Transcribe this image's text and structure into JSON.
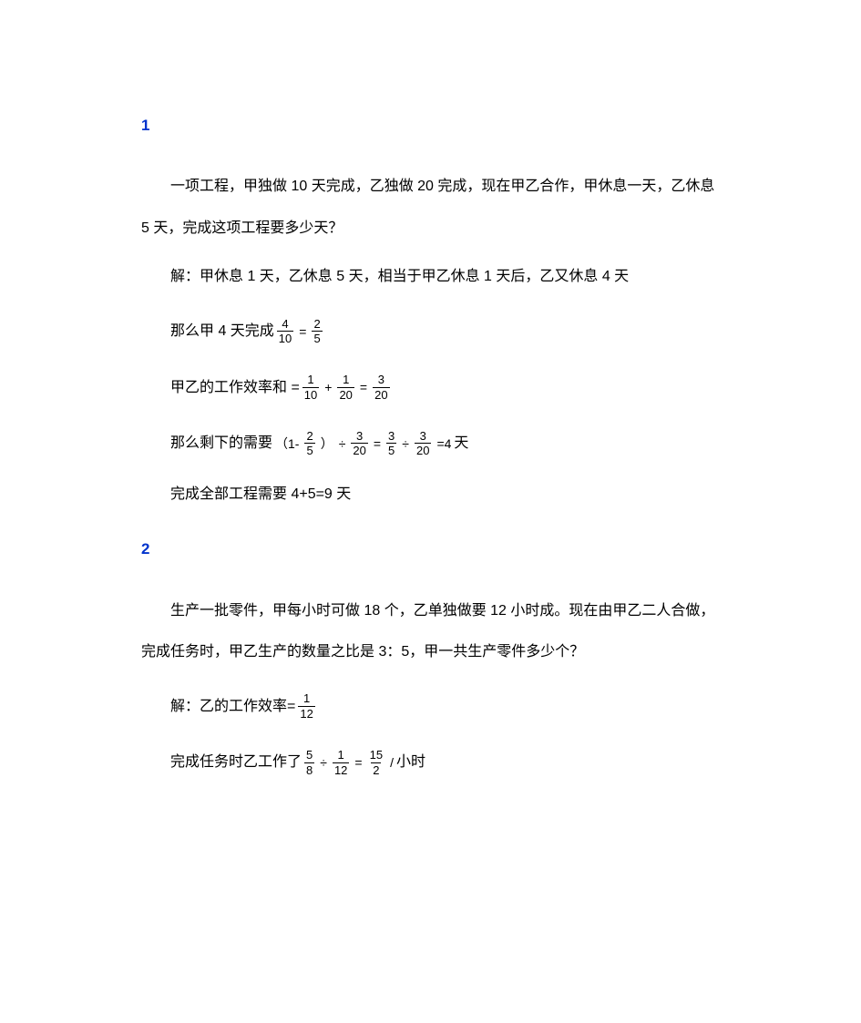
{
  "problem1": {
    "number": "1",
    "q_line1": "一项工程，甲独做 10 天完成，乙独做 20 完成，现在甲乙合作，甲休息一天，乙休息",
    "q_line2": "5 天，完成这项工程要多少天？",
    "sol_intro": "解：甲休息 1 天，乙休息 5 天，相当于甲乙休息 1 天后，乙又休息 4 天",
    "step1_prefix": "那么甲 4 天完成",
    "step1_frac_top": "4",
    "step1_frac_bot": "10",
    "step1_eq": "=",
    "step1_frac2_top": "2",
    "step1_frac2_bot": "5",
    "rate_prefix": "甲乙的工作效率和 =",
    "rate_f1_top": "1",
    "rate_f1_bot": "10",
    "rate_plus": "+",
    "rate_f2_top": "1",
    "rate_f2_bot": "20",
    "rate_eq": "=",
    "rate_f3_top": "3",
    "rate_f3_bot": "20",
    "rest_prefix": "那么剩下的需要",
    "rest_open": "（1-",
    "rest_f1_top": "2",
    "rest_f1_bot": "5",
    "rest_close": "）",
    "rest_div1": "÷",
    "rest_f2_top": "3",
    "rest_f2_bot": "20",
    "rest_eq1": "=",
    "rest_f3_top": "3",
    "rest_f3_bot": "5",
    "rest_div2": "÷",
    "rest_f4_top": "3",
    "rest_f4_bot": "20",
    "rest_eq2": "=4",
    "rest_unit": "天",
    "answer": "完成全部工程需要 4+5=9 天"
  },
  "problem2": {
    "number": "2",
    "q_line1": "生产一批零件，甲每小时可做 18 个，乙单独做要 12 小时成。现在由甲乙二人合做，",
    "q_line2": "完成任务时，甲乙生产的数量之比是 3：5，甲一共生产零件多少个？",
    "yi_rate_prefix": "解：乙的工作效率=",
    "yi_rate_top": "1",
    "yi_rate_bot": "12",
    "time_prefix": "完成任务时乙工作了",
    "time_f1_top": "5",
    "time_f1_bot": "8",
    "time_div": "÷",
    "time_f2_top": "1",
    "time_f2_bot": "12",
    "time_eq": "=",
    "time_f3_top": "15",
    "time_f3_bot": "2",
    "time_unit_sep": "/",
    "time_unit": "小时"
  },
  "colors": {
    "text": "#000000",
    "accent": "#0033cc",
    "background": "#ffffff"
  }
}
